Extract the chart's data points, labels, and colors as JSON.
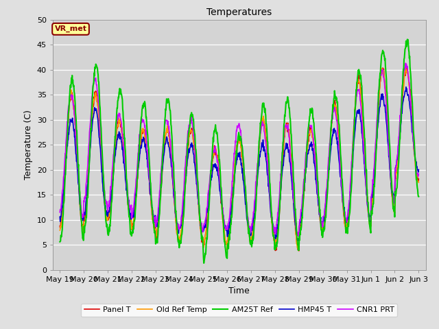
{
  "title": "Temperatures",
  "xlabel": "Time",
  "ylabel": "Temperature (C)",
  "ylim": [
    0,
    50
  ],
  "xlim": [
    -0.3,
    15.3
  ],
  "background_color": "#e0e0e0",
  "plot_bg_color": "#d4d4d4",
  "grid_color": "#ffffff",
  "annotation_text": "VR_met",
  "annotation_bg": "#ffff99",
  "annotation_border": "#8B0000",
  "series": {
    "Panel T": {
      "color": "#dd0000",
      "lw": 1.2
    },
    "Old Ref Temp": {
      "color": "#ff9900",
      "lw": 1.2
    },
    "AM25T Ref": {
      "color": "#00cc00",
      "lw": 1.5
    },
    "HMP45 T": {
      "color": "#0000cc",
      "lw": 1.2
    },
    "CNR1 PRT": {
      "color": "#cc00ff",
      "lw": 1.2
    }
  },
  "xtick_labels": [
    "May 19",
    "May 20",
    "May 21",
    "May 22",
    "May 23",
    "May 24",
    "May 25",
    "May 26",
    "May 27",
    "May 28",
    "May 29",
    "May 30",
    "May 31",
    "Jun 1",
    "Jun 2",
    "Jun 3"
  ],
  "xtick_positions": [
    0,
    1,
    2,
    3,
    4,
    5,
    6,
    7,
    8,
    9,
    10,
    11,
    12,
    13,
    14,
    15
  ],
  "ytick_labels": [
    "0",
    "5",
    "10",
    "15",
    "20",
    "25",
    "30",
    "35",
    "40",
    "45",
    "50"
  ],
  "ytick_positions": [
    0,
    5,
    10,
    15,
    20,
    25,
    30,
    35,
    40,
    45,
    50
  ],
  "figsize": [
    6.4,
    4.8
  ],
  "dpi": 100
}
